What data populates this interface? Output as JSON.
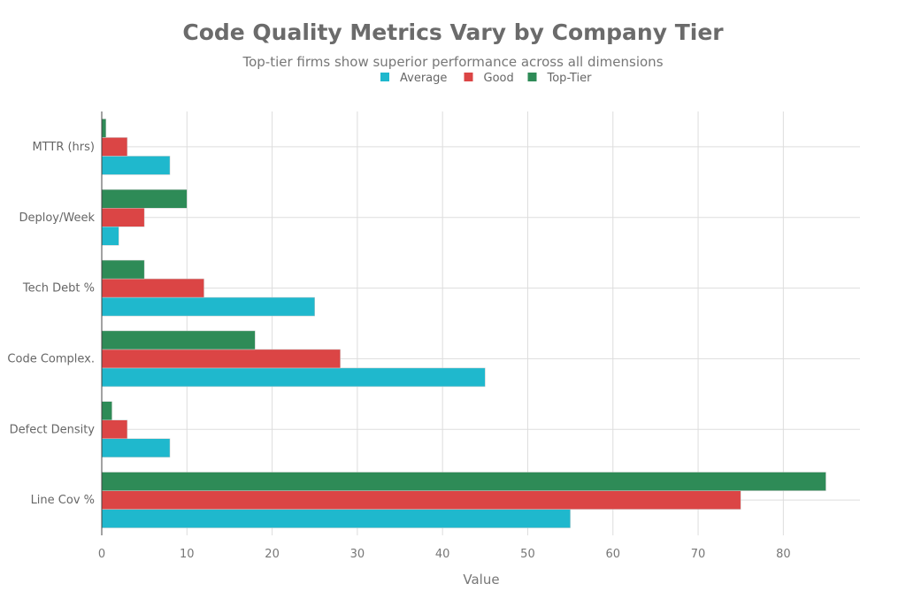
{
  "chart_data": {
    "type": "bar",
    "orientation": "horizontal",
    "title": "Code Quality Metrics Vary by Company Tier",
    "subtitle": "Top-tier firms show superior performance across all dimensions",
    "xlabel": "Value",
    "ylabel": "",
    "xlim": [
      0,
      89
    ],
    "xticks": [
      0,
      10,
      20,
      30,
      40,
      50,
      60,
      70,
      80
    ],
    "grid": true,
    "legend_position": "top-center",
    "categories": [
      "Line Cov %",
      "Defect Density",
      "Code Complex.",
      "Tech Debt %",
      "Deploy/Week",
      "MTTR (hrs)"
    ],
    "series": [
      {
        "name": "Average",
        "color": "#1fb8cd",
        "values": [
          55,
          8,
          45,
          25,
          2,
          8
        ]
      },
      {
        "name": "Good",
        "color": "#db4545",
        "values": [
          75,
          3,
          28,
          12,
          5,
          3
        ]
      },
      {
        "name": "Top-Tier",
        "color": "#2e8b57",
        "values": [
          85,
          1.2,
          18,
          5,
          10,
          0.5
        ]
      }
    ]
  }
}
